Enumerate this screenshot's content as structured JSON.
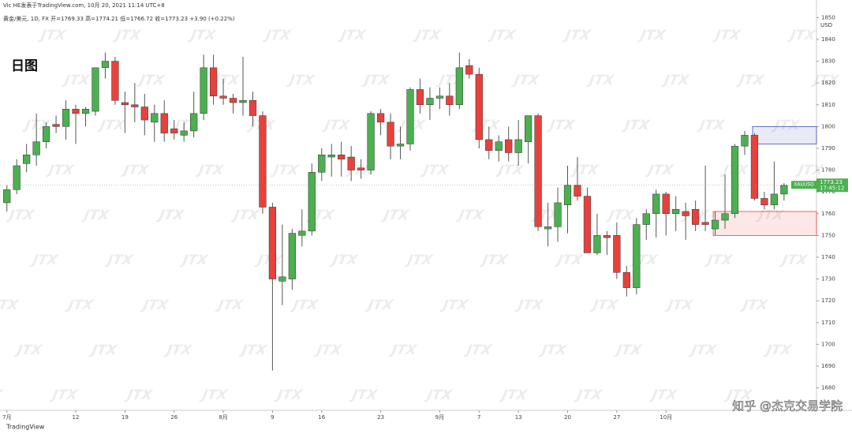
{
  "header": {
    "publisher": "Vic HE发表于TradingView.com, 10月 20, 2021 11:14 UTC+8",
    "info": "黄金/美元, 1D, FX 开=1769.33 高=1774.21 低=1766.72 收=1773.23 +3.90 (+0.22%)"
  },
  "watermark": "JTX",
  "footer": {
    "logo": "TradingView",
    "credit": "知乎 @杰克交易学院"
  },
  "chart_data": {
    "type": "candlestick",
    "title": "日图",
    "currency": "USD",
    "symbol": "XAUUSD",
    "last_price": 1773.23,
    "countdown": "17:45:12",
    "up_color": "#4caf50",
    "down_color": "#e8413c",
    "open": [
      1765,
      1771,
      1783,
      1787,
      1793,
      1801,
      1800,
      1808,
      1806,
      1807,
      1827,
      1830,
      1811,
      1810,
      1809,
      1802,
      1806,
      1799,
      1796,
      1798,
      1806,
      1827,
      1814,
      1813,
      1811,
      1812,
      1805,
      1763,
      1729,
      1730,
      1750,
      1752,
      1779,
      1786,
      1787,
      1786,
      1781,
      1780,
      1806,
      1802,
      1791,
      1792,
      1817,
      1810,
      1813,
      1814,
      1810,
      1828,
      1824,
      1794,
      1789,
      1794,
      1788,
      1793,
      1805,
      1753,
      1754,
      1764,
      1773,
      1768,
      1742,
      1750,
      1750,
      1733,
      1726,
      1755,
      1760,
      1769,
      1760,
      1761,
      1762,
      1756,
      1753,
      1757,
      1760,
      1791,
      1796,
      1767,
      1764,
      1769
    ],
    "high": [
      1773,
      1785,
      1792,
      1806,
      1802,
      1805,
      1812,
      1810,
      1809,
      1827,
      1834,
      1832,
      1816,
      1820,
      1815,
      1810,
      1812,
      1803,
      1802,
      1816,
      1833,
      1833,
      1822,
      1815,
      1832,
      1816,
      1807,
      1765,
      1755,
      1753,
      1762,
      1783,
      1790,
      1792,
      1793,
      1791,
      1785,
      1807,
      1808,
      1806,
      1800,
      1818,
      1822,
      1818,
      1818,
      1820,
      1834,
      1831,
      1827,
      1800,
      1796,
      1800,
      1803,
      1805,
      1806,
      1765,
      1772,
      1782,
      1786,
      1772,
      1760,
      1752,
      1756,
      1736,
      1758,
      1762,
      1771,
      1770,
      1768,
      1765,
      1766,
      1782,
      1761,
      1778,
      1792,
      1798,
      1797,
      1770,
      1784,
      1774
    ],
    "low": [
      1761,
      1769,
      1779,
      1782,
      1790,
      1797,
      1794,
      1792,
      1800,
      1805,
      1822,
      1810,
      1797,
      1802,
      1796,
      1793,
      1793,
      1794,
      1793,
      1795,
      1803,
      1810,
      1810,
      1806,
      1805,
      1800,
      1760,
      1688,
      1718,
      1725,
      1745,
      1750,
      1775,
      1777,
      1777,
      1775,
      1776,
      1778,
      1796,
      1785,
      1785,
      1789,
      1806,
      1803,
      1808,
      1805,
      1808,
      1822,
      1790,
      1785,
      1784,
      1784,
      1782,
      1783,
      1752,
      1745,
      1747,
      1751,
      1766,
      1743,
      1741,
      1741,
      1730,
      1722,
      1723,
      1748,
      1749,
      1750,
      1752,
      1748,
      1752,
      1752,
      1750,
      1753,
      1758,
      1787,
      1766,
      1762,
      1762,
      1766
    ],
    "close": [
      1771,
      1782,
      1787,
      1793,
      1800,
      1800,
      1808,
      1806,
      1808,
      1827,
      1830,
      1812,
      1810,
      1809,
      1803,
      1806,
      1797,
      1797,
      1798,
      1806,
      1827,
      1814,
      1813,
      1811,
      1812,
      1805,
      1763,
      1730,
      1731,
      1751,
      1752,
      1779,
      1787,
      1787,
      1785,
      1780,
      1780,
      1806,
      1802,
      1791,
      1792,
      1817,
      1810,
      1813,
      1814,
      1810,
      1827,
      1824,
      1794,
      1789,
      1793,
      1788,
      1794,
      1805,
      1754,
      1754,
      1765,
      1773,
      1768,
      1742,
      1750,
      1749,
      1733,
      1726,
      1755,
      1760,
      1769,
      1760,
      1762,
      1759,
      1755,
      1755,
      1757,
      1760,
      1791,
      1796,
      1767,
      1764,
      1769,
      1773
    ],
    "xlim": [
      -0.7,
      82.3
    ],
    "xticks": [
      {
        "value": 0,
        "label": "7月"
      },
      {
        "value": 7,
        "label": "12"
      },
      {
        "value": 12,
        "label": "19"
      },
      {
        "value": 17,
        "label": "26"
      },
      {
        "value": 22,
        "label": "8月"
      },
      {
        "value": 27,
        "label": "9"
      },
      {
        "value": 32,
        "label": "16"
      },
      {
        "value": 38,
        "label": "23"
      },
      {
        "value": 44,
        "label": "9月"
      },
      {
        "value": 48,
        "label": "7"
      },
      {
        "value": 52,
        "label": "13"
      },
      {
        "value": 57,
        "label": "20"
      },
      {
        "value": 62,
        "label": "27"
      },
      {
        "value": 67,
        "label": "10月"
      }
    ],
    "ylim": [
      1669.7,
      1858.1
    ],
    "yticks": [
      1680,
      1690,
      1700,
      1710,
      1720,
      1730,
      1740,
      1750,
      1760,
      1770,
      1780,
      1790,
      1800,
      1810,
      1820,
      1830,
      1840,
      1850
    ],
    "zones": [
      {
        "x_from": 75.8,
        "top": 1800,
        "bottom": 1792,
        "color": "#3f51b5"
      },
      {
        "x_from": 71.8,
        "top": 1761,
        "bottom": 1750,
        "color": "#e8413c"
      }
    ]
  }
}
